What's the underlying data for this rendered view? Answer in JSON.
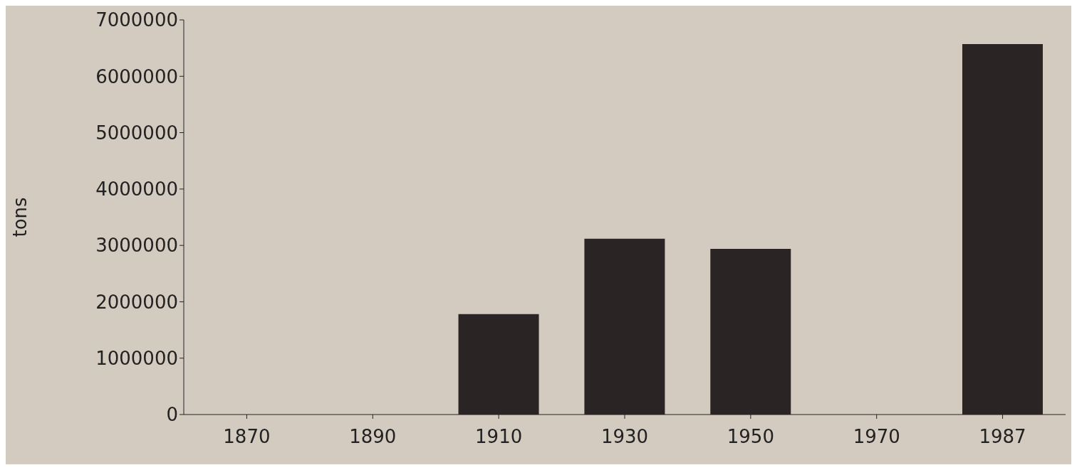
{
  "chart_data": {
    "type": "bar",
    "ylabel": "tons",
    "categories": [
      "1870",
      "1890",
      "1910",
      "1930",
      "1950",
      "1970",
      "1987"
    ],
    "values": [
      0,
      0,
      1780000,
      3120000,
      2940000,
      0,
      6570000
    ],
    "color": "#2a2424",
    "ylim": [
      0,
      7000000
    ],
    "yticks": [
      0,
      1000000,
      2000000,
      3000000,
      4000000,
      5000000,
      6000000,
      7000000
    ],
    "grid": false,
    "legend": false
  }
}
